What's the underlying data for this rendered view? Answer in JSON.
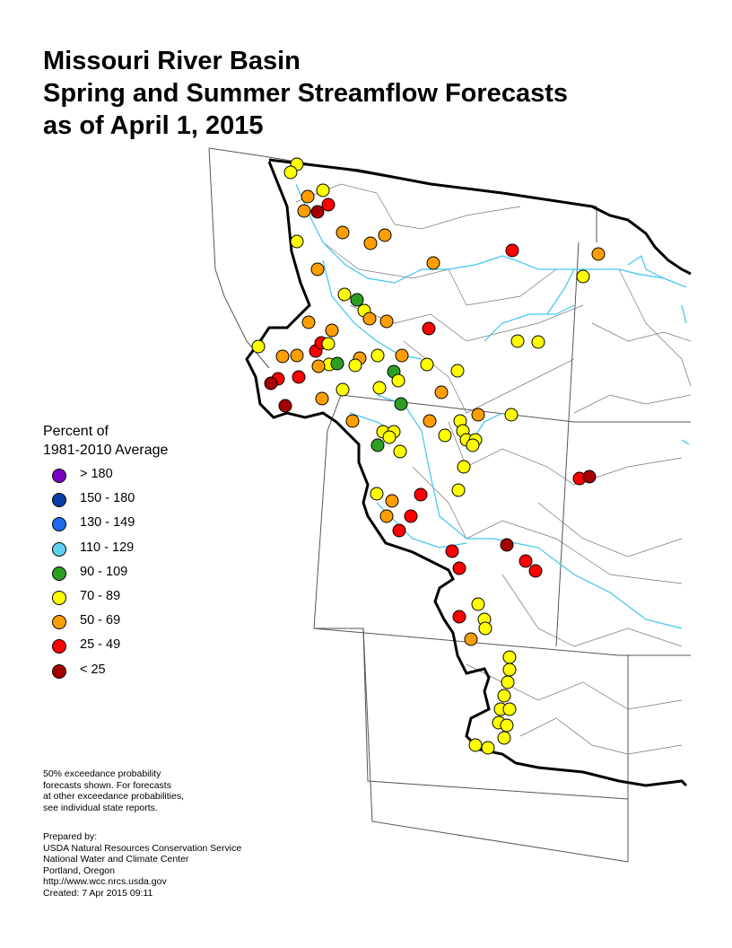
{
  "title": {
    "line1": "Missouri River Basin",
    "line2": "Spring and Summer Streamflow Forecasts",
    "line3": "as of April 1, 2015"
  },
  "legend": {
    "title1": "Percent of",
    "title2": "1981-2010 Average",
    "items": [
      {
        "label": "> 180",
        "color": "#7b00bf"
      },
      {
        "label": "150 - 180",
        "color": "#0a3fa6"
      },
      {
        "label": "130 - 149",
        "color": "#1c6bef"
      },
      {
        "label": "110 - 129",
        "color": "#5fd0f0"
      },
      {
        "label": "90 - 109",
        "color": "#2e9e23"
      },
      {
        "label": "70 - 89",
        "color": "#ffff00"
      },
      {
        "label": "50 - 69",
        "color": "#ff9e00"
      },
      {
        "label": "25 - 49",
        "color": "#ff0000"
      },
      {
        "label": "< 25",
        "color": "#a50000"
      }
    ]
  },
  "note": {
    "line1": "50% exceedance probability",
    "line2": "forecasts shown.  For forecasts",
    "line3": "at other exceedance probabilities,",
    "line4": "see individual state reports."
  },
  "credits": {
    "line1": "Prepared by:",
    "line2": "USDA Natural Resources Conservation Service",
    "line3": "National Water and Climate Center",
    "line4": "Portland, Oregon",
    "line5": "http://www.wcc.nrcs.usda.gov",
    "line6": "Created:   7 Apr 2015   09:11"
  },
  "colors": {
    "basin_boundary": "#000000",
    "state_line": "#333333",
    "river": "#3fc6f0"
  }
}
